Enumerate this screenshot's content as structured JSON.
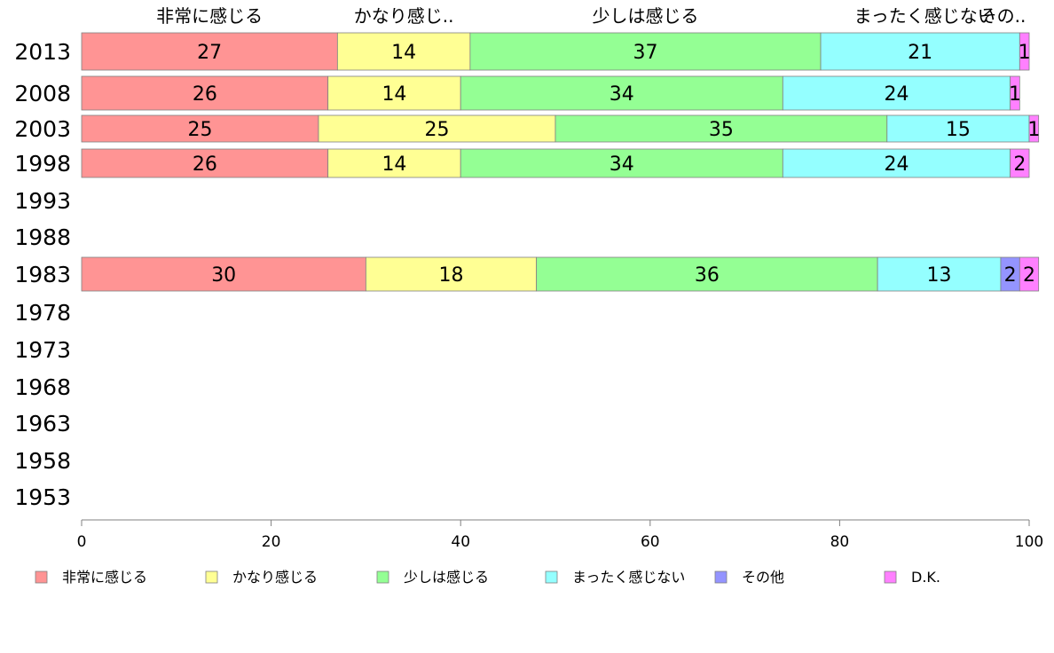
{
  "chart_data": {
    "type": "bar",
    "orientation": "horizontal",
    "stacked": true,
    "categories": [
      "2013",
      "2008",
      "2003",
      "1998",
      "1993",
      "1988",
      "1983",
      "1978",
      "1973",
      "1968",
      "1963",
      "1958",
      "1953"
    ],
    "series": [
      {
        "name": "非常に感じる",
        "color": "#ff9494",
        "values": [
          27,
          26,
          25,
          26,
          null,
          null,
          30,
          null,
          null,
          null,
          null,
          null,
          null
        ]
      },
      {
        "name": "かなり感じる",
        "color": "#ffff94",
        "values": [
          14,
          14,
          25,
          14,
          null,
          null,
          18,
          null,
          null,
          null,
          null,
          null,
          null
        ]
      },
      {
        "name": "少しは感じる",
        "color": "#94ff94",
        "values": [
          37,
          34,
          35,
          34,
          null,
          null,
          36,
          null,
          null,
          null,
          null,
          null,
          null
        ]
      },
      {
        "name": "まったく感じない",
        "color": "#94ffff",
        "values": [
          21,
          24,
          15,
          24,
          null,
          null,
          13,
          null,
          null,
          null,
          null,
          null,
          null
        ]
      },
      {
        "name": "その他",
        "color": "#9494ff",
        "values": [
          0,
          0,
          0,
          0,
          null,
          null,
          2,
          null,
          null,
          null,
          null,
          null,
          null
        ]
      },
      {
        "name": "D.K.",
        "color": "#ff80ff",
        "values": [
          1,
          1,
          1,
          2,
          null,
          null,
          2,
          null,
          null,
          null,
          null,
          null,
          null
        ]
      }
    ],
    "top_labels": [
      "非常に感じる",
      "かなり感じ..",
      "少しは感じる",
      "まったく感じない",
      "その.."
    ],
    "xlim": [
      0,
      100
    ],
    "xticks": [
      "0",
      "20",
      "40",
      "60",
      "80",
      "100"
    ],
    "grid": false,
    "legend_position": "bottom"
  }
}
